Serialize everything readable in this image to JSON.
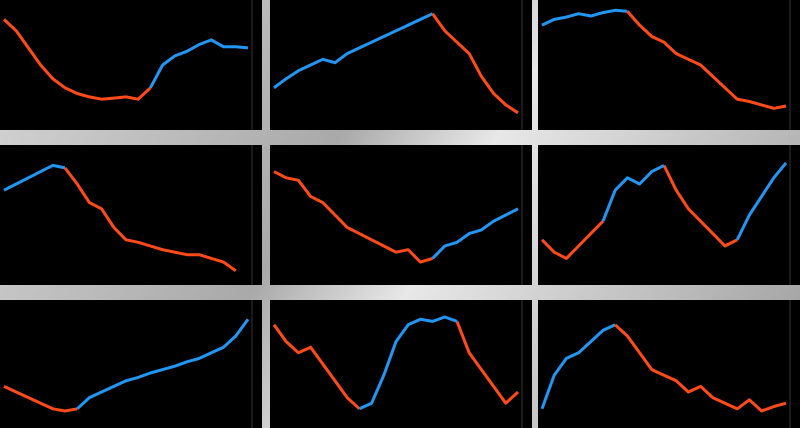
{
  "chart_data": [
    {
      "type": "line",
      "x": [
        0,
        1,
        2,
        3,
        4,
        5,
        6,
        7,
        8,
        9,
        10,
        11,
        12,
        13,
        14,
        15,
        16,
        17,
        18,
        19,
        20
      ],
      "xlim": [
        0,
        20
      ],
      "ylim": [
        0,
        100
      ],
      "series": [
        {
          "color": "#ff4a1a",
          "values": [
            90,
            80,
            65,
            50,
            38,
            30,
            25,
            22,
            20,
            21,
            22,
            20,
            30,
            null,
            null,
            null,
            null,
            null,
            null,
            null,
            null
          ]
        },
        {
          "color": "#2196f3",
          "values": [
            null,
            null,
            null,
            null,
            null,
            null,
            null,
            null,
            null,
            null,
            null,
            null,
            30,
            50,
            58,
            62,
            68,
            72,
            66,
            66,
            65
          ]
        }
      ]
    },
    {
      "type": "line",
      "x": [
        0,
        1,
        2,
        3,
        4,
        5,
        6,
        7,
        8,
        9,
        10,
        11,
        12,
        13,
        14,
        15,
        16,
        17,
        18,
        19,
        20
      ],
      "xlim": [
        0,
        20
      ],
      "ylim": [
        0,
        100
      ],
      "series": [
        {
          "color": "#2196f3",
          "values": [
            30,
            38,
            45,
            50,
            55,
            52,
            60,
            65,
            70,
            75,
            80,
            85,
            90,
            95,
            null,
            null,
            null,
            null,
            null,
            null,
            null
          ]
        },
        {
          "color": "#ff4a1a",
          "values": [
            null,
            null,
            null,
            null,
            null,
            null,
            null,
            null,
            null,
            null,
            null,
            null,
            null,
            95,
            80,
            70,
            60,
            40,
            25,
            15,
            8
          ]
        }
      ]
    },
    {
      "type": "line",
      "x": [
        0,
        1,
        2,
        3,
        4,
        5,
        6,
        7,
        8,
        9,
        10,
        11,
        12,
        13,
        14,
        15,
        16,
        17,
        18,
        19,
        20
      ],
      "xlim": [
        0,
        20
      ],
      "ylim": [
        0,
        100
      ],
      "series": [
        {
          "color": "#2196f3",
          "values": [
            85,
            90,
            92,
            95,
            93,
            96,
            98,
            97,
            null,
            null,
            null,
            null,
            null,
            null,
            null,
            null,
            null,
            null,
            null,
            null,
            null
          ]
        },
        {
          "color": "#ff4a1a",
          "values": [
            null,
            null,
            null,
            null,
            null,
            null,
            null,
            97,
            85,
            75,
            70,
            60,
            55,
            50,
            40,
            30,
            20,
            18,
            15,
            12,
            14
          ]
        }
      ]
    },
    {
      "type": "line",
      "x": [
        0,
        1,
        2,
        3,
        4,
        5,
        6,
        7,
        8,
        9,
        10,
        11,
        12,
        13,
        14,
        15,
        16,
        17,
        18,
        19,
        20
      ],
      "xlim": [
        0,
        20
      ],
      "ylim": [
        0,
        100
      ],
      "series": [
        {
          "color": "#2196f3",
          "values": [
            70,
            75,
            80,
            85,
            90,
            88,
            null,
            null,
            null,
            null,
            null,
            null,
            null,
            null,
            null,
            null,
            null,
            null,
            null,
            null,
            null
          ]
        },
        {
          "color": "#ff4a1a",
          "values": [
            null,
            null,
            null,
            null,
            null,
            88,
            75,
            60,
            55,
            40,
            30,
            28,
            25,
            22,
            20,
            18,
            18,
            15,
            12,
            5,
            null
          ]
        }
      ]
    },
    {
      "type": "line",
      "x": [
        0,
        1,
        2,
        3,
        4,
        5,
        6,
        7,
        8,
        9,
        10,
        11,
        12,
        13,
        14,
        15,
        16,
        17,
        18,
        19,
        20
      ],
      "xlim": [
        0,
        20
      ],
      "ylim": [
        0,
        100
      ],
      "series": [
        {
          "color": "#ff4a1a",
          "values": [
            85,
            80,
            78,
            65,
            60,
            50,
            40,
            35,
            30,
            25,
            20,
            22,
            12,
            15,
            null,
            null,
            null,
            null,
            null,
            null,
            null
          ]
        },
        {
          "color": "#2196f3",
          "values": [
            null,
            null,
            null,
            null,
            null,
            null,
            null,
            null,
            null,
            null,
            null,
            null,
            null,
            15,
            25,
            28,
            35,
            38,
            45,
            50,
            55
          ]
        }
      ]
    },
    {
      "type": "line",
      "x": [
        0,
        1,
        2,
        3,
        4,
        5,
        6,
        7,
        8,
        9,
        10,
        11,
        12,
        13,
        14,
        15,
        16,
        17,
        18,
        19,
        20
      ],
      "xlim": [
        0,
        20
      ],
      "ylim": [
        0,
        100
      ],
      "series": [
        {
          "color": "#ff4a1a",
          "values": [
            30,
            20,
            15,
            25,
            35,
            45,
            null,
            null,
            null,
            null,
            90,
            70,
            55,
            45,
            35,
            25,
            30,
            null,
            null,
            null,
            null
          ]
        },
        {
          "color": "#2196f3",
          "values": [
            null,
            null,
            null,
            null,
            null,
            45,
            70,
            80,
            75,
            85,
            90,
            null,
            null,
            null,
            null,
            null,
            30,
            50,
            65,
            80,
            92
          ]
        }
      ]
    },
    {
      "type": "line",
      "x": [
        0,
        1,
        2,
        3,
        4,
        5,
        6,
        7,
        8,
        9,
        10,
        11,
        12,
        13,
        14,
        15,
        16,
        17,
        18,
        19,
        20
      ],
      "xlim": [
        0,
        20
      ],
      "ylim": [
        0,
        100
      ],
      "series": [
        {
          "color": "#ff4a1a",
          "values": [
            30,
            25,
            20,
            15,
            10,
            8,
            10,
            null,
            null,
            null,
            null,
            null,
            null,
            null,
            null,
            null,
            null,
            null,
            null,
            null,
            null
          ]
        },
        {
          "color": "#2196f3",
          "values": [
            null,
            null,
            null,
            null,
            null,
            null,
            10,
            20,
            25,
            30,
            35,
            38,
            42,
            45,
            48,
            52,
            55,
            60,
            65,
            75,
            90
          ]
        }
      ]
    },
    {
      "type": "line",
      "x": [
        0,
        1,
        2,
        3,
        4,
        5,
        6,
        7,
        8,
        9,
        10,
        11,
        12,
        13,
        14,
        15,
        16,
        17,
        18,
        19,
        20
      ],
      "xlim": [
        0,
        20
      ],
      "ylim": [
        0,
        100
      ],
      "series": [
        {
          "color": "#ff4a1a",
          "values": [
            85,
            70,
            60,
            65,
            50,
            35,
            20,
            10,
            null,
            null,
            null,
            null,
            null,
            null,
            null,
            88,
            60,
            45,
            30,
            15,
            25
          ]
        },
        {
          "color": "#2196f3",
          "values": [
            null,
            null,
            null,
            null,
            null,
            null,
            null,
            10,
            15,
            40,
            70,
            85,
            90,
            88,
            92,
            88,
            null,
            null,
            null,
            null,
            null
          ]
        }
      ]
    },
    {
      "type": "line",
      "x": [
        0,
        1,
        2,
        3,
        4,
        5,
        6,
        7,
        8,
        9,
        10,
        11,
        12,
        13,
        14,
        15,
        16,
        17,
        18,
        19,
        20
      ],
      "xlim": [
        0,
        20
      ],
      "ylim": [
        0,
        100
      ],
      "series": [
        {
          "color": "#2196f3",
          "values": [
            10,
            40,
            55,
            60,
            70,
            80,
            85,
            null,
            null,
            null,
            null,
            null,
            null,
            null,
            null,
            null,
            null,
            null,
            null,
            null,
            null
          ]
        },
        {
          "color": "#ff4a1a",
          "values": [
            null,
            null,
            null,
            null,
            null,
            null,
            85,
            75,
            60,
            45,
            40,
            35,
            25,
            30,
            20,
            15,
            10,
            18,
            8,
            12,
            15
          ]
        }
      ]
    }
  ]
}
